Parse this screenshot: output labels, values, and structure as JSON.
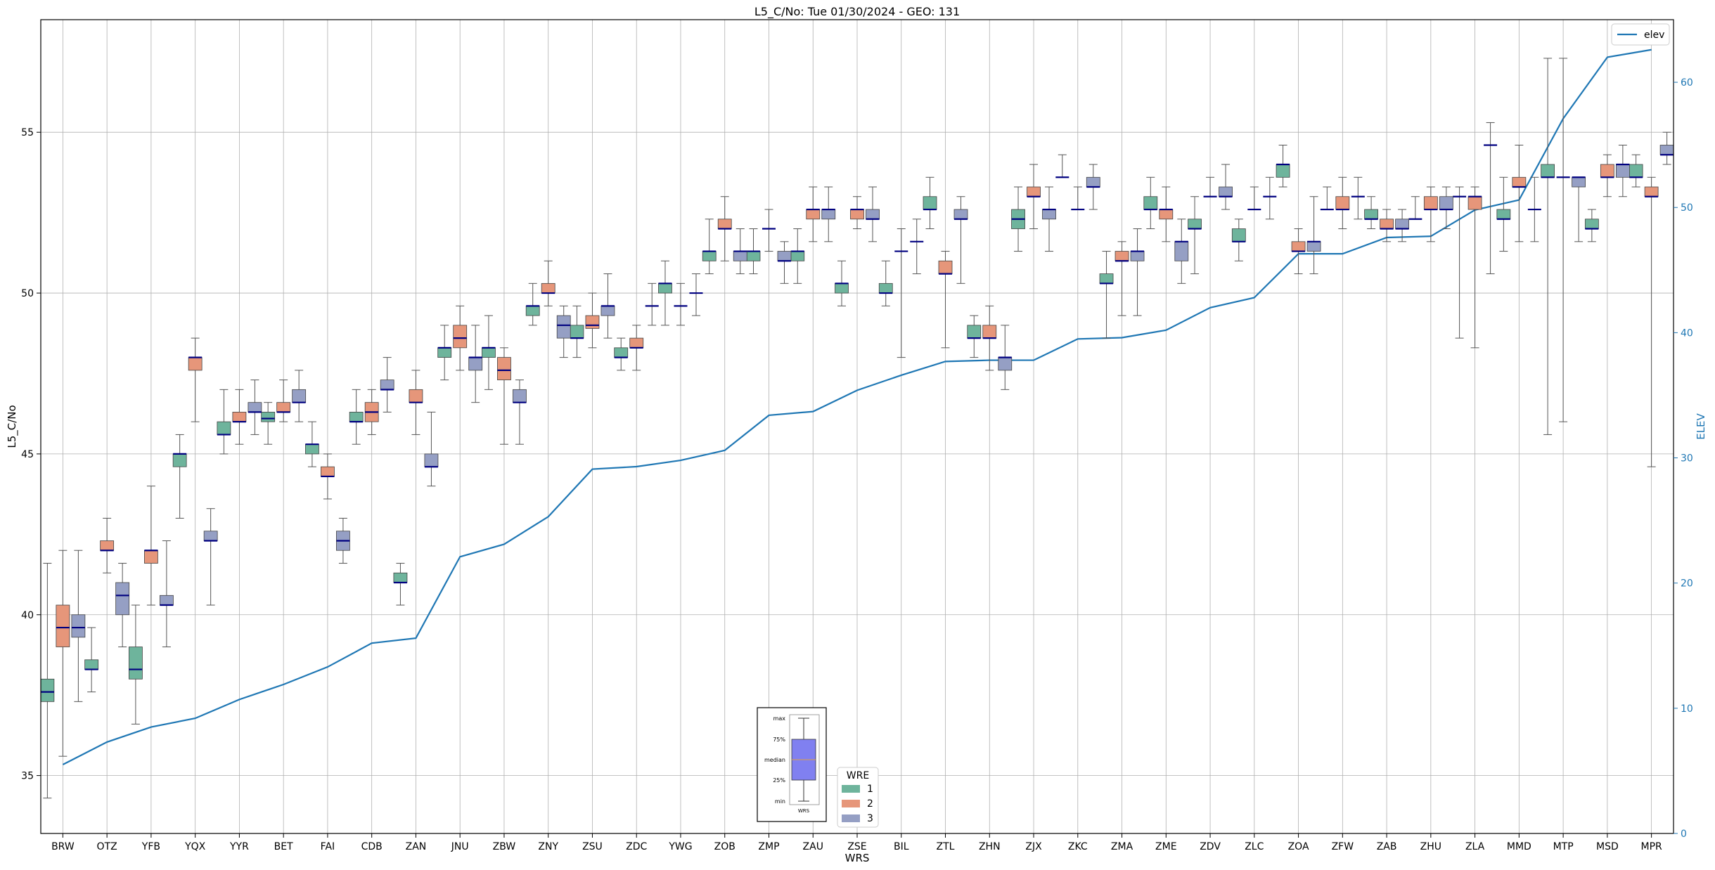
{
  "chart_data": {
    "type": "box",
    "title": "L5_C/No: Tue 01/30/2024 - GEO: 131",
    "xlabel": "WRS",
    "ylabel": "L5_C/No",
    "y2label": "ELEV",
    "ylim": [
      33.2,
      58.5
    ],
    "y2lim": [
      0,
      65
    ],
    "yticks": [
      35,
      40,
      45,
      50,
      55
    ],
    "y2ticks": [
      0,
      10,
      20,
      30,
      40,
      50,
      60
    ],
    "grid": true,
    "legend_elev": {
      "label": "elev",
      "placement": "top-right"
    },
    "legend_wre": {
      "title": "WRE",
      "entries": [
        "1",
        "2",
        "3"
      ],
      "placement": "bottom-center"
    },
    "key_box": {
      "labels": [
        "max",
        "75%",
        "median",
        "25%",
        "min"
      ],
      "xlabel": "WRS"
    },
    "colors": {
      "wre1": "#6eb49c",
      "wre2": "#e6967a",
      "wre3": "#959fc4",
      "median": "#000080",
      "elev": "#1f77b4",
      "key_box": "#8080f0",
      "key_median": "#e0a040",
      "whisker": "#555555"
    },
    "categories": [
      "BRW",
      "OTZ",
      "YFB",
      "YQX",
      "YYR",
      "BET",
      "FAI",
      "CDB",
      "ZAN",
      "JNU",
      "ZBW",
      "ZNY",
      "ZSU",
      "ZDC",
      "YWG",
      "ZOB",
      "ZMP",
      "ZAU",
      "ZSE",
      "BIL",
      "ZTL",
      "ZHN",
      "ZJX",
      "ZKC",
      "ZMA",
      "ZME",
      "ZDV",
      "ZLC",
      "ZOA",
      "ZFW",
      "ZAB",
      "ZHU",
      "ZLA",
      "MMD",
      "MTP",
      "MSD",
      "MPR"
    ],
    "elev": [
      5.5,
      7.3,
      8.5,
      9.2,
      10.7,
      11.9,
      13.3,
      15.2,
      15.6,
      22.1,
      23.1,
      25.3,
      29.1,
      29.3,
      29.8,
      30.6,
      33.4,
      33.7,
      35.4,
      36.6,
      37.7,
      37.8,
      37.8,
      39.5,
      39.6,
      40.2,
      42.0,
      42.8,
      46.3,
      46.3,
      47.6,
      47.7,
      49.8,
      50.6,
      57.1,
      62.0,
      62.6
    ],
    "series": [
      {
        "name": "1",
        "boxes": [
          [
            34.3,
            37.3,
            37.6,
            38.0,
            41.6
          ],
          [
            37.6,
            38.3,
            38.3,
            38.6,
            39.6
          ],
          [
            36.6,
            38.0,
            38.3,
            39.0,
            40.3
          ],
          [
            43.0,
            44.6,
            45.0,
            45.0,
            45.6
          ],
          [
            45.0,
            45.6,
            45.6,
            46.0,
            47.0
          ],
          [
            45.3,
            46.0,
            46.1,
            46.3,
            46.6
          ],
          [
            44.6,
            45.0,
            45.3,
            45.3,
            46.0
          ],
          [
            45.3,
            46.0,
            46.0,
            46.3,
            47.0
          ],
          [
            40.3,
            41.0,
            41.0,
            41.3,
            41.6
          ],
          [
            47.3,
            48.0,
            48.3,
            48.3,
            49.0
          ],
          [
            47.0,
            48.0,
            48.3,
            48.3,
            49.3
          ],
          [
            49.0,
            49.3,
            49.6,
            49.6,
            50.3
          ],
          [
            48.0,
            48.6,
            48.6,
            49.0,
            49.6
          ],
          [
            47.6,
            48.0,
            48.0,
            48.3,
            48.6
          ],
          [
            49.0,
            50.0,
            50.3,
            50.3,
            51.0
          ],
          [
            50.6,
            51.0,
            51.3,
            51.3,
            52.3
          ],
          [
            50.6,
            51.0,
            51.3,
            51.3,
            52.0
          ],
          [
            50.3,
            51.0,
            51.3,
            51.3,
            52.0
          ],
          [
            49.6,
            50.0,
            50.3,
            50.3,
            51.0
          ],
          [
            49.6,
            50.0,
            50.0,
            50.3,
            51.0
          ],
          [
            52.0,
            52.6,
            52.6,
            53.0,
            53.6
          ],
          [
            48.0,
            48.6,
            48.6,
            49.0,
            49.3
          ],
          [
            51.3,
            52.0,
            52.3,
            52.6,
            53.3
          ],
          [
            null,
            null,
            53.6,
            null,
            54.3
          ],
          [
            48.6,
            50.3,
            50.3,
            50.6,
            51.3
          ],
          [
            52.0,
            52.6,
            52.6,
            53.0,
            53.6
          ],
          [
            50.6,
            52.0,
            52.0,
            52.3,
            53.0
          ],
          [
            51.0,
            51.6,
            51.6,
            52.0,
            52.3
          ],
          [
            53.3,
            53.6,
            54.0,
            54.0,
            54.6
          ],
          [
            null,
            null,
            52.6,
            null,
            53.3
          ],
          [
            52.0,
            52.3,
            52.3,
            52.6,
            53.0
          ],
          [
            null,
            null,
            52.3,
            null,
            53.0
          ],
          [
            48.6,
            null,
            53.0,
            null,
            53.3
          ],
          [
            51.3,
            52.3,
            52.3,
            52.6,
            53.6
          ],
          [
            45.6,
            53.6,
            53.6,
            54.0,
            57.3
          ],
          [
            51.6,
            52.0,
            52.0,
            52.3,
            52.6
          ],
          [
            53.3,
            53.6,
            53.6,
            54.0,
            54.3
          ]
        ]
      },
      {
        "name": "2",
        "boxes": [
          [
            35.6,
            39.0,
            39.6,
            40.3,
            42.0
          ],
          [
            41.3,
            42.0,
            42.0,
            42.3,
            43.0
          ],
          [
            40.3,
            41.6,
            42.0,
            42.0,
            44.0
          ],
          [
            46.0,
            47.6,
            48.0,
            48.0,
            48.6
          ],
          [
            45.3,
            46.0,
            46.0,
            46.3,
            47.0
          ],
          [
            46.0,
            46.3,
            46.3,
            46.6,
            47.3
          ],
          [
            43.6,
            44.3,
            44.3,
            44.6,
            45.0
          ],
          [
            45.6,
            46.0,
            46.3,
            46.6,
            47.0
          ],
          [
            45.6,
            46.6,
            46.6,
            47.0,
            47.6
          ],
          [
            47.6,
            48.3,
            48.6,
            49.0,
            49.6
          ],
          [
            45.3,
            47.3,
            47.6,
            48.0,
            48.3
          ],
          [
            49.6,
            50.0,
            50.0,
            50.3,
            51.0
          ],
          [
            48.3,
            48.9,
            49.0,
            49.3,
            50.0
          ],
          [
            47.6,
            48.3,
            48.3,
            48.6,
            49.0
          ],
          [
            49.0,
            null,
            49.6,
            null,
            50.3
          ],
          [
            51.0,
            52.0,
            52.0,
            52.3,
            53.0
          ],
          [
            51.3,
            null,
            52.0,
            null,
            52.6
          ],
          [
            51.6,
            52.3,
            52.6,
            52.6,
            53.3
          ],
          [
            52.0,
            52.3,
            52.6,
            52.6,
            53.0
          ],
          [
            48.0,
            null,
            51.3,
            null,
            52.0
          ],
          [
            48.3,
            50.6,
            50.6,
            51.0,
            51.3
          ],
          [
            47.6,
            48.6,
            48.6,
            49.0,
            49.6
          ],
          [
            52.0,
            53.0,
            53.0,
            53.3,
            54.0
          ],
          [
            null,
            null,
            52.6,
            null,
            53.3
          ],
          [
            49.3,
            51.0,
            51.0,
            51.3,
            51.6
          ],
          [
            51.6,
            52.3,
            52.6,
            52.6,
            53.3
          ],
          [
            null,
            null,
            53.0,
            null,
            53.6
          ],
          [
            null,
            null,
            52.6,
            null,
            53.3
          ],
          [
            50.6,
            51.3,
            51.3,
            51.6,
            52.0
          ],
          [
            52.0,
            52.6,
            52.6,
            53.0,
            53.6
          ],
          [
            51.6,
            52.0,
            52.0,
            52.3,
            52.6
          ],
          [
            51.6,
            52.6,
            52.6,
            53.0,
            53.3
          ],
          [
            48.3,
            52.6,
            53.0,
            53.0,
            53.3
          ],
          [
            51.6,
            53.3,
            53.3,
            53.6,
            54.6
          ],
          [
            46.0,
            null,
            53.6,
            null,
            57.3
          ],
          [
            53.0,
            53.6,
            53.6,
            54.0,
            54.3
          ],
          [
            44.6,
            53.0,
            53.0,
            53.3,
            53.6
          ]
        ]
      },
      {
        "name": "3",
        "boxes": [
          [
            37.3,
            39.3,
            39.6,
            40.0,
            42.0
          ],
          [
            39.0,
            40.0,
            40.6,
            41.0,
            41.6
          ],
          [
            39.0,
            40.3,
            40.3,
            40.6,
            42.3
          ],
          [
            40.3,
            42.3,
            42.3,
            42.6,
            43.3
          ],
          [
            45.6,
            46.3,
            46.3,
            46.6,
            47.3
          ],
          [
            46.0,
            46.6,
            46.6,
            47.0,
            47.6
          ],
          [
            41.6,
            42.0,
            42.3,
            42.6,
            43.0
          ],
          [
            46.3,
            47.0,
            47.0,
            47.3,
            48.0
          ],
          [
            44.0,
            44.6,
            44.6,
            45.0,
            46.3
          ],
          [
            46.6,
            47.6,
            48.0,
            48.0,
            49.0
          ],
          [
            45.3,
            46.6,
            46.6,
            47.0,
            47.3
          ],
          [
            48.0,
            48.6,
            49.0,
            49.3,
            49.6
          ],
          [
            48.6,
            49.3,
            49.6,
            49.6,
            50.6
          ],
          [
            49.0,
            null,
            49.6,
            null,
            50.3
          ],
          [
            49.3,
            null,
            50.0,
            null,
            50.6
          ],
          [
            50.6,
            51.0,
            51.3,
            51.3,
            52.0
          ],
          [
            50.3,
            51.0,
            51.0,
            51.3,
            51.6
          ],
          [
            51.6,
            52.3,
            52.6,
            52.6,
            53.3
          ],
          [
            51.6,
            52.3,
            52.3,
            52.6,
            53.3
          ],
          [
            50.6,
            null,
            51.6,
            null,
            52.3
          ],
          [
            50.3,
            52.3,
            52.3,
            52.6,
            53.0
          ],
          [
            47.0,
            47.6,
            48.0,
            48.0,
            49.0
          ],
          [
            51.3,
            52.3,
            52.6,
            52.6,
            53.3
          ],
          [
            52.6,
            53.3,
            53.3,
            53.6,
            54.0
          ],
          [
            49.3,
            51.0,
            51.3,
            51.3,
            52.0
          ],
          [
            50.3,
            51.0,
            51.6,
            51.6,
            52.3
          ],
          [
            52.6,
            53.0,
            53.0,
            53.3,
            54.0
          ],
          [
            52.3,
            null,
            53.0,
            null,
            53.6
          ],
          [
            50.6,
            51.3,
            51.6,
            51.6,
            53.0
          ],
          [
            52.3,
            null,
            53.0,
            null,
            53.6
          ],
          [
            51.6,
            52.0,
            52.0,
            52.3,
            52.6
          ],
          [
            52.0,
            52.6,
            52.6,
            53.0,
            53.3
          ],
          [
            50.6,
            null,
            54.6,
            null,
            55.3
          ],
          [
            51.6,
            null,
            52.6,
            null,
            53.6
          ],
          [
            51.6,
            53.3,
            53.6,
            53.6,
            53.6
          ],
          [
            53.0,
            53.6,
            54.0,
            54.0,
            54.6
          ],
          [
            54.0,
            54.3,
            54.3,
            54.6,
            55.0
          ]
        ]
      }
    ]
  }
}
